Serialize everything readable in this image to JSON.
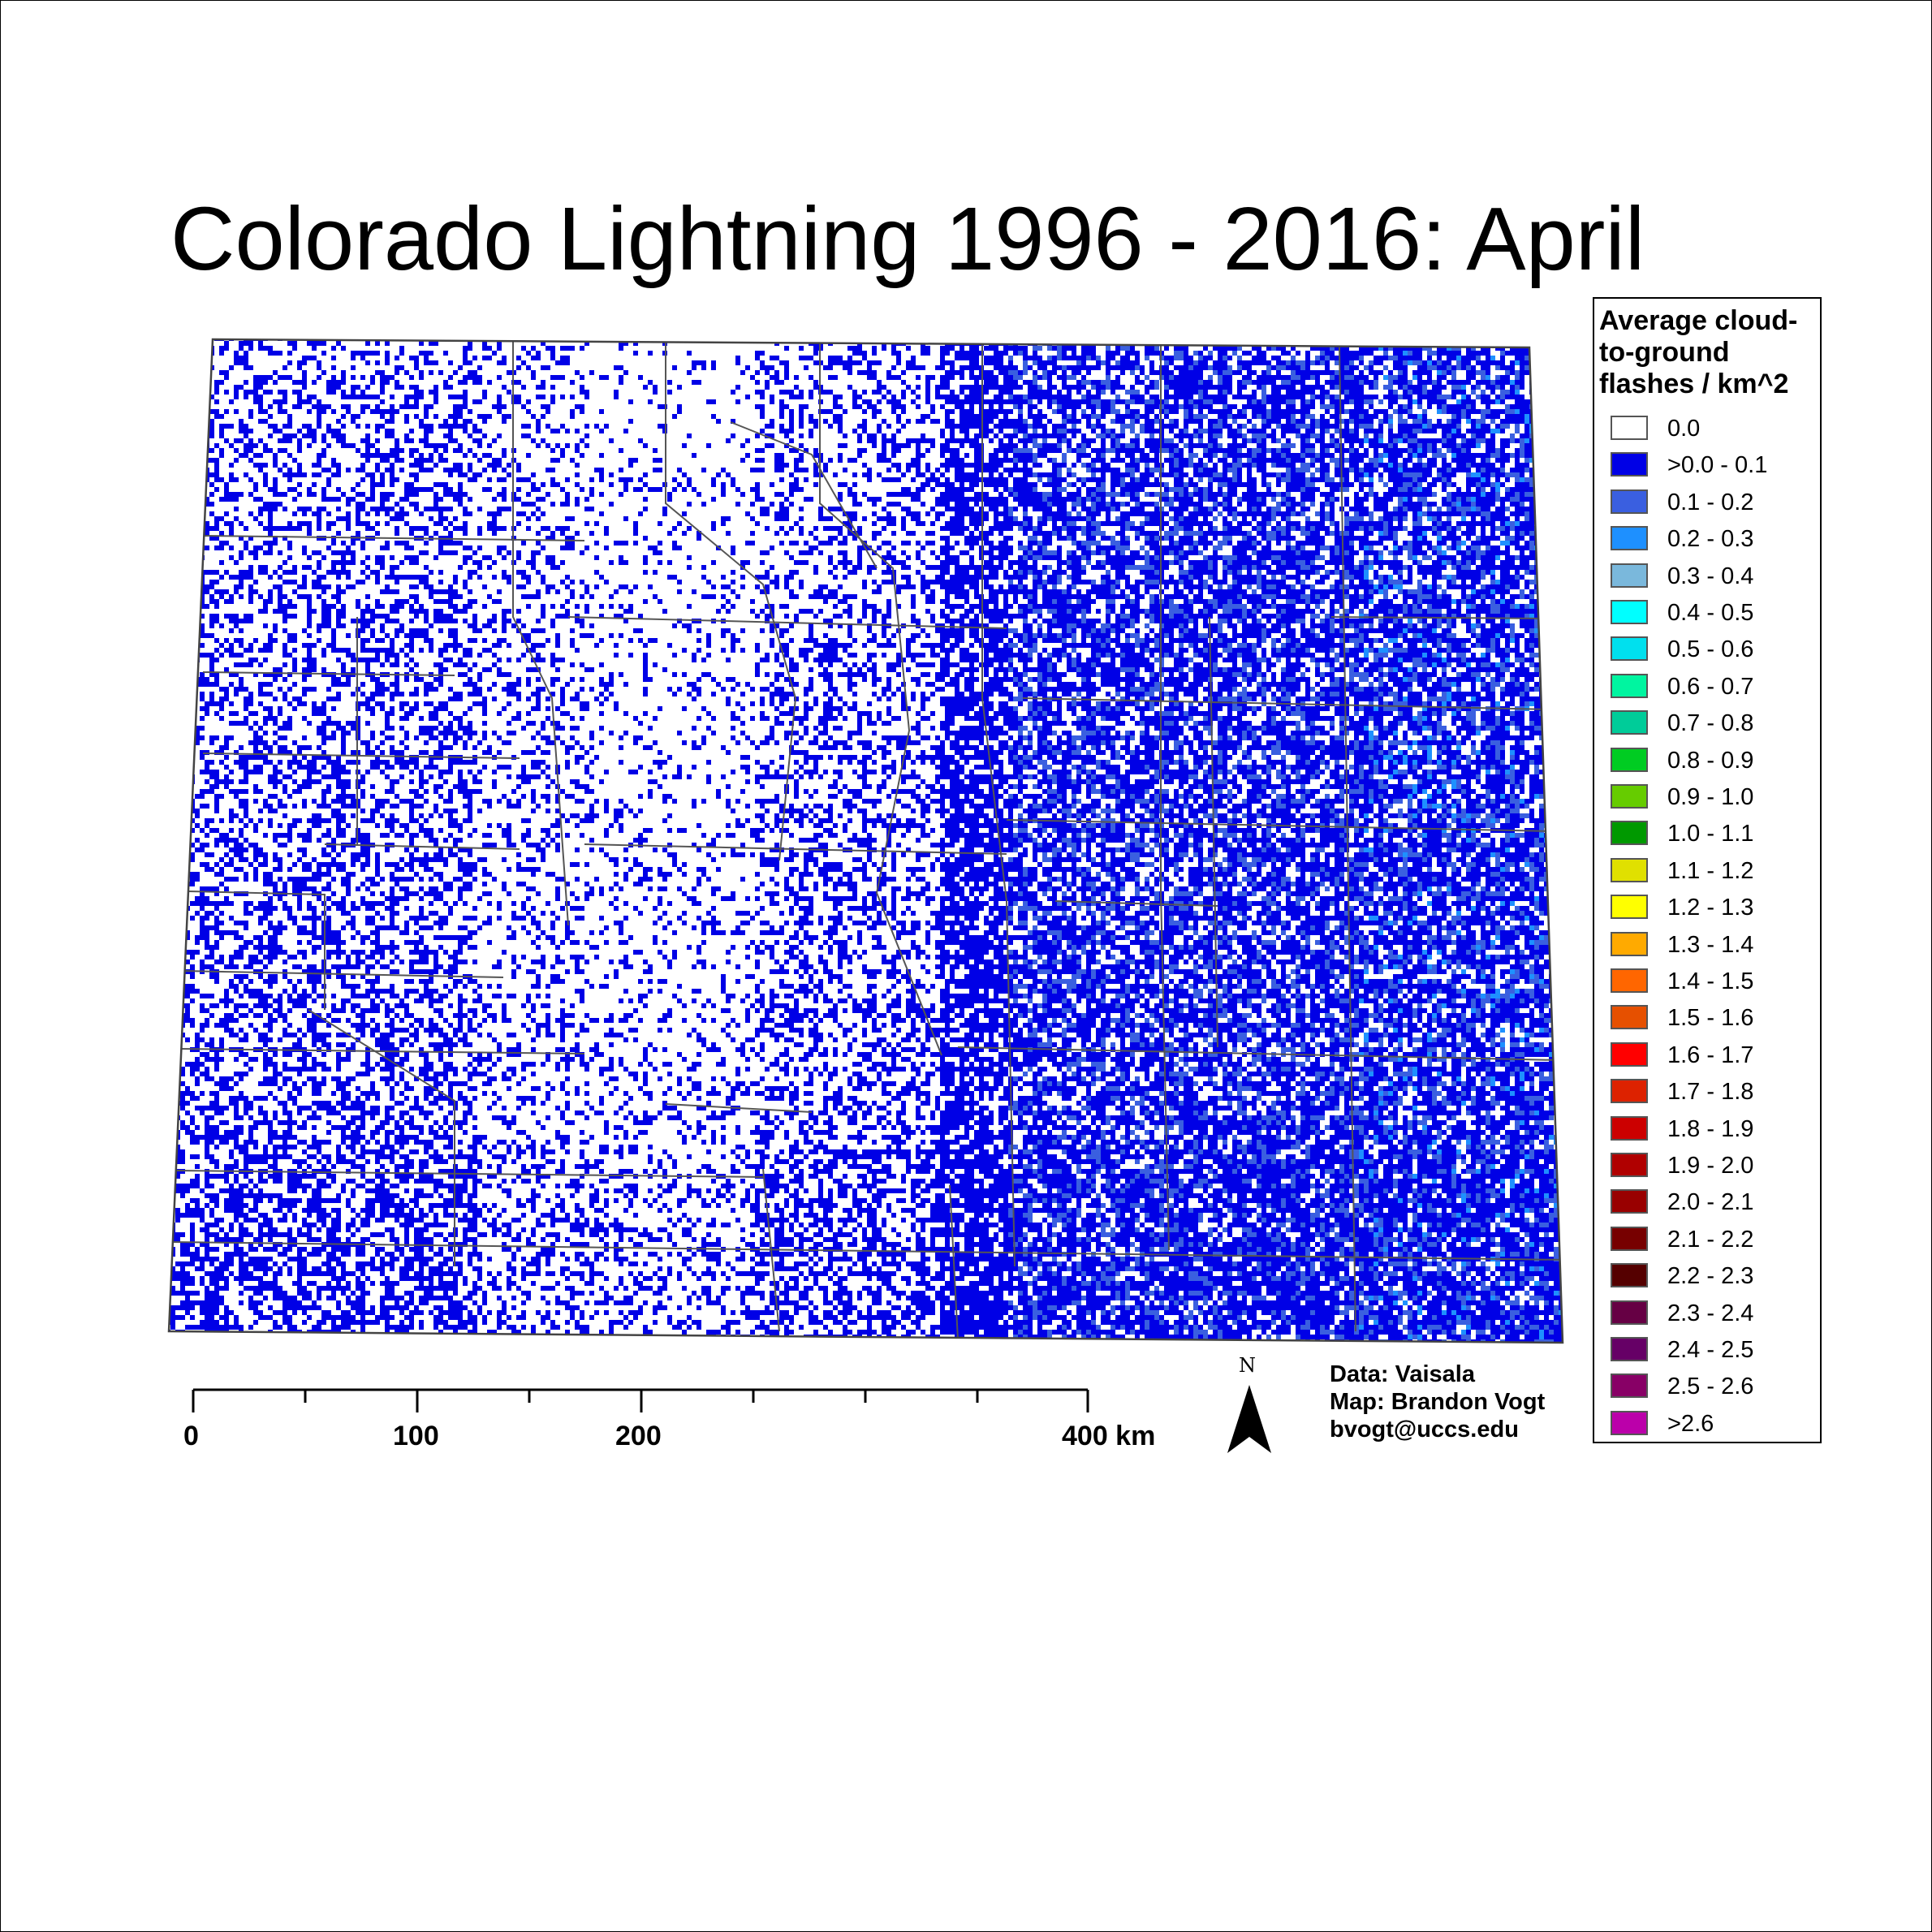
{
  "title": "Colorado Lightning 1996 - 2016:  April",
  "legend": {
    "title": "Average cloud-to-ground flashes / km^2",
    "items": [
      {
        "label": "0.0",
        "color": "#ffffff"
      },
      {
        "label": ">0.0 - 0.1",
        "color": "#0000e6"
      },
      {
        "label": "0.1 - 0.2",
        "color": "#3a5fe0"
      },
      {
        "label": "0.2 - 0.3",
        "color": "#1e90ff"
      },
      {
        "label": "0.3 - 0.4",
        "color": "#7ab8dc"
      },
      {
        "label": "0.4 - 0.5",
        "color": "#00ffff"
      },
      {
        "label": "0.5 - 0.6",
        "color": "#00e0ee"
      },
      {
        "label": "0.6 - 0.7",
        "color": "#00f5a0"
      },
      {
        "label": "0.7 - 0.8",
        "color": "#00cc99"
      },
      {
        "label": "0.8 - 0.9",
        "color": "#00cc22"
      },
      {
        "label": "0.9 - 1.0",
        "color": "#66cc00"
      },
      {
        "label": "1.0 - 1.1",
        "color": "#009900"
      },
      {
        "label": "1.1 - 1.2",
        "color": "#e0e000"
      },
      {
        "label": "1.2 - 1.3",
        "color": "#ffff00"
      },
      {
        "label": "1.3 - 1.4",
        "color": "#ffaa00"
      },
      {
        "label": "1.4 - 1.5",
        "color": "#ff6600"
      },
      {
        "label": "1.5 - 1.6",
        "color": "#e65000"
      },
      {
        "label": "1.6 - 1.7",
        "color": "#ff0000"
      },
      {
        "label": "1.7 - 1.8",
        "color": "#dd2200"
      },
      {
        "label": "1.8 - 1.9",
        "color": "#cc0000"
      },
      {
        "label": "1.9 - 2.0",
        "color": "#b00000"
      },
      {
        "label": "2.0 - 2.1",
        "color": "#990000"
      },
      {
        "label": "2.1 - 2.2",
        "color": "#770000"
      },
      {
        "label": "2.2 - 2.3",
        "color": "#550000"
      },
      {
        "label": "2.3 - 2.4",
        "color": "#660044"
      },
      {
        "label": "2.4 - 2.5",
        "color": "#660066"
      },
      {
        "label": "2.5 - 2.6",
        "color": "#880066"
      },
      {
        "label": ">2.6",
        "color": "#bb00aa"
      }
    ]
  },
  "scale_bar": {
    "labels": [
      "0",
      "100",
      "200",
      "400 km"
    ]
  },
  "north_arrow": {
    "label": "N",
    "icon": "north-arrow-icon"
  },
  "credits": [
    "Data: Vaisala",
    "Map: Brandon Vogt",
    "bvogt@uccs.edu"
  ],
  "colors": {
    "flash_dot": "#0000e6",
    "flash_dense": "#3a5fe0",
    "flash_bright": "#1e90ff",
    "county_line": "#555555"
  }
}
